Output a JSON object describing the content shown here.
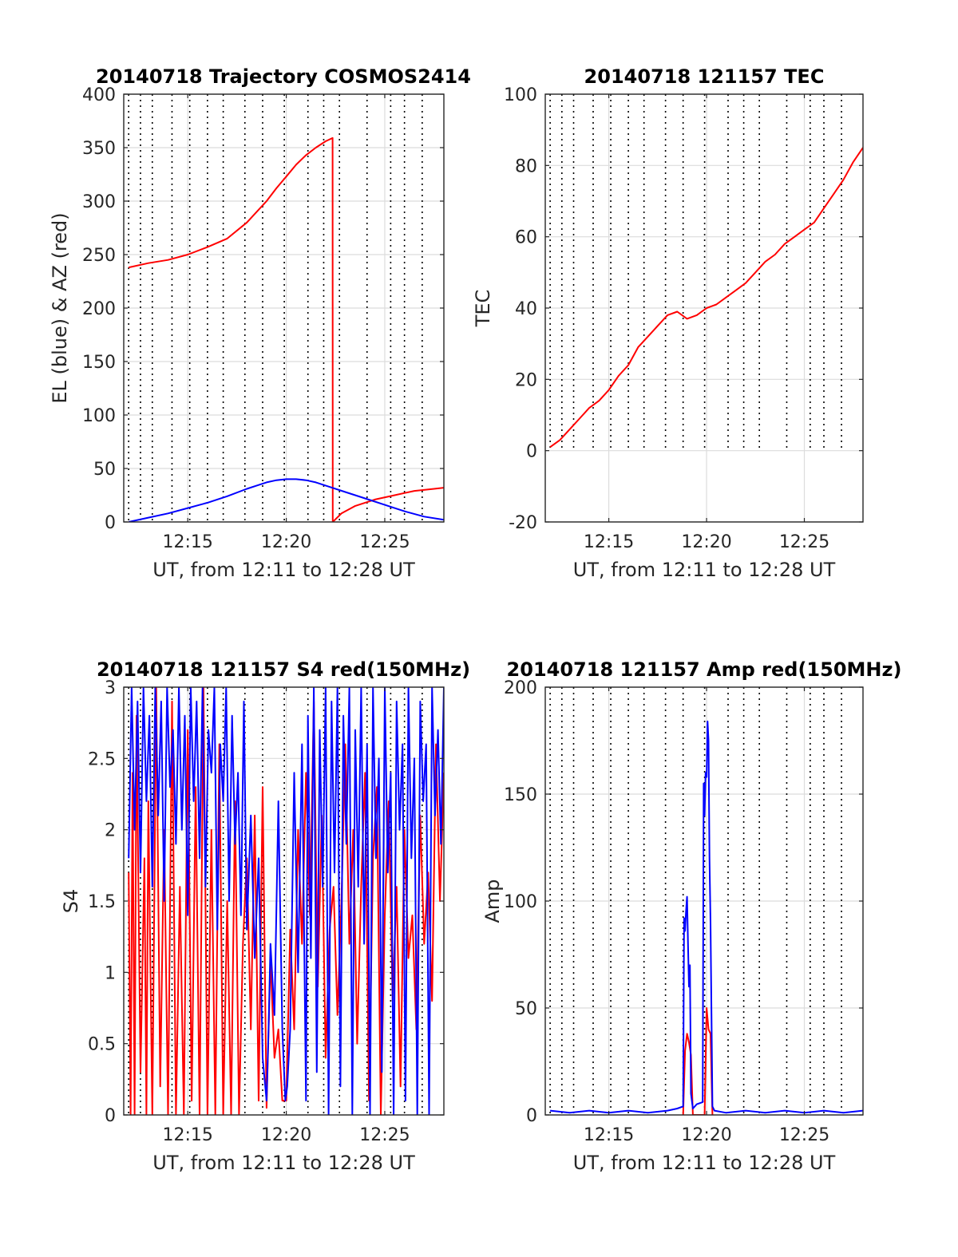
{
  "chart_data": [
    {
      "type": "line",
      "title": "20140718 Trajectory COSMOS2414",
      "xlabel": "UT, from 12:11 to 12:28 UT",
      "ylabel": "EL (blue) & AZ (red)",
      "xlim": [
        11.75,
        28
      ],
      "ylim": [
        0,
        400
      ],
      "xticks": [
        15,
        20,
        25
      ],
      "xtick_labels": [
        "12:15",
        "12:20",
        "12:25"
      ],
      "yticks": [
        0,
        50,
        100,
        150,
        200,
        250,
        300,
        350,
        400
      ],
      "ytick_labels": [
        "0",
        "50",
        "100",
        "150",
        "200",
        "250",
        "300",
        "350",
        "400"
      ],
      "grid": true,
      "vlines": [
        12.0,
        12.6,
        13.2,
        14.2,
        15.1,
        16.0,
        16.8,
        17.9,
        18.8,
        19.9,
        21.1,
        21.9,
        22.7,
        24.1,
        25.3,
        26.0,
        26.9
      ],
      "series": [
        {
          "color": "#ff0000",
          "x": [
            12.0,
            13.0,
            14.0,
            15.0,
            16.0,
            17.0,
            18.0,
            19.0,
            19.5,
            20.0,
            20.5,
            21.0,
            21.5,
            22.0,
            22.35,
            22.36,
            22.8,
            23.5,
            24.5,
            25.5,
            26.5,
            27.5,
            28.0
          ],
          "y": [
            238,
            242,
            245,
            250,
            257,
            265,
            280,
            300,
            312,
            323,
            334,
            343,
            350,
            356,
            359,
            0,
            8,
            15,
            21,
            25,
            29,
            31,
            32
          ]
        },
        {
          "color": "#0000ff",
          "x": [
            12.0,
            13.0,
            14.0,
            15.0,
            16.0,
            17.0,
            18.0,
            18.5,
            19.0,
            19.5,
            20.0,
            20.5,
            21.0,
            21.5,
            22.0,
            23.0,
            24.0,
            25.0,
            26.0,
            27.0,
            28.0
          ],
          "y": [
            0,
            4,
            8,
            13,
            18,
            24,
            31,
            34,
            37,
            39,
            40,
            40,
            39,
            37,
            34,
            28,
            22,
            16,
            10,
            5,
            2
          ]
        }
      ]
    },
    {
      "type": "line",
      "title": "20140718 121157 TEC",
      "xlabel": "UT, from 12:11 to 12:28 UT",
      "ylabel": "TEC",
      "xlim": [
        11.75,
        28
      ],
      "ylim": [
        -20,
        100
      ],
      "xticks": [
        15,
        20,
        25
      ],
      "xtick_labels": [
        "12:15",
        "12:20",
        "12:25"
      ],
      "yticks": [
        -20,
        0,
        20,
        40,
        60,
        80,
        100
      ],
      "ytick_labels": [
        "-20",
        "0",
        "20",
        "40",
        "60",
        "80",
        "100"
      ],
      "grid": true,
      "vlines": [
        12.0,
        12.6,
        13.2,
        14.2,
        15.1,
        16.0,
        16.8,
        17.9,
        18.8,
        19.9,
        21.1,
        21.9,
        22.7,
        24.1,
        25.3,
        26.0,
        26.9
      ],
      "series": [
        {
          "color": "#ff0000",
          "x": [
            12.0,
            12.5,
            13.0,
            13.5,
            14.0,
            14.5,
            15.0,
            15.5,
            16.0,
            16.5,
            17.0,
            17.5,
            18.0,
            18.5,
            19.0,
            19.5,
            20.0,
            20.5,
            21.0,
            21.5,
            22.0,
            22.5,
            23.0,
            23.5,
            24.0,
            24.5,
            25.0,
            25.5,
            26.0,
            26.5,
            27.0,
            27.5,
            28.0
          ],
          "y": [
            1,
            3,
            6,
            9,
            12,
            14,
            17,
            21,
            24,
            29,
            32,
            35,
            38,
            39,
            37,
            38,
            40,
            41,
            43,
            45,
            47,
            50,
            53,
            55,
            58,
            60,
            62,
            64,
            68,
            72,
            76,
            81,
            85
          ]
        }
      ]
    },
    {
      "type": "line",
      "title": "20140718 121157 S4 red(150MHz)",
      "xlabel": "UT, from 12:11 to 12:28 UT",
      "ylabel": "S4",
      "xlim": [
        11.75,
        28
      ],
      "ylim": [
        0,
        3
      ],
      "xticks": [
        15,
        20,
        25
      ],
      "xtick_labels": [
        "12:15",
        "12:20",
        "12:25"
      ],
      "yticks": [
        0,
        0.5,
        1,
        1.5,
        2,
        2.5,
        3
      ],
      "ytick_labels": [
        "0",
        "0.5",
        "1",
        "1.5",
        "2",
        "2.5",
        "3"
      ],
      "grid": true,
      "vlines": [
        12.0,
        12.6,
        13.2,
        14.2,
        15.1,
        16.0,
        16.8,
        17.9,
        18.8,
        19.9,
        21.1,
        21.9,
        22.7,
        24.1,
        25.3,
        26.0,
        26.9
      ],
      "series": [
        {
          "color": "#ff0000",
          "x": [
            12.0,
            12.1,
            12.2,
            12.3,
            12.4,
            12.6,
            12.8,
            12.9,
            13.0,
            13.2,
            13.4,
            13.6,
            13.8,
            14.0,
            14.2,
            14.4,
            14.6,
            14.8,
            15.0,
            15.2,
            15.4,
            15.6,
            15.8,
            16.0,
            16.2,
            16.4,
            16.6,
            16.8,
            17.0,
            17.2,
            17.4,
            17.6,
            17.8,
            18.0,
            18.2,
            18.4,
            18.6,
            18.8,
            19.0,
            19.2,
            19.4,
            19.6,
            19.8,
            20.0,
            20.2,
            20.4,
            20.6,
            20.8,
            21.0,
            21.2,
            21.4,
            21.6,
            21.8,
            22.0,
            22.2,
            22.4,
            22.6,
            22.8,
            23.0,
            23.2,
            23.4,
            23.6,
            23.8,
            24.0,
            24.2,
            24.4,
            24.6,
            24.8,
            25.0,
            25.2,
            25.4,
            25.6,
            25.8,
            26.0,
            26.2,
            26.4,
            26.6,
            26.8,
            27.0,
            27.2,
            27.4,
            27.6,
            27.8,
            28.0
          ],
          "y": [
            1.7,
            0.0,
            2.4,
            0.0,
            2.8,
            0.3,
            1.8,
            0.0,
            2.2,
            0.0,
            3.0,
            0.2,
            2.0,
            0.0,
            2.9,
            0.0,
            1.6,
            0.0,
            2.7,
            0.1,
            2.3,
            0.0,
            3.0,
            0.0,
            2.0,
            0.0,
            2.6,
            0.0,
            1.5,
            0.0,
            2.2,
            0.0,
            1.2,
            1.8,
            0.6,
            2.1,
            0.1,
            2.3,
            0.05,
            1.1,
            0.4,
            0.6,
            0.1,
            0.1,
            1.3,
            0.6,
            2.0,
            1.2,
            2.4,
            1.4,
            2.9,
            0.9,
            2.1,
            0.4,
            1.3,
            1.6,
            0.7,
            1.5,
            2.6,
            1.2,
            2.0,
            0.5,
            1.6,
            2.4,
            0.1,
            1.8,
            2.3,
            0.0,
            1.4,
            2.2,
            0.8,
            1.6,
            0.2,
            2.0,
            1.1,
            1.4,
            0.6,
            2.1,
            1.2,
            1.7,
            0.8,
            2.6,
            1.5,
            2.4
          ]
        },
        {
          "color": "#0000ff",
          "x": [
            12.0,
            12.15,
            12.3,
            12.45,
            12.6,
            12.75,
            12.9,
            13.05,
            13.2,
            13.35,
            13.5,
            13.65,
            13.8,
            13.95,
            14.1,
            14.25,
            14.4,
            14.55,
            14.7,
            14.85,
            15.0,
            15.15,
            15.3,
            15.45,
            15.6,
            15.75,
            15.9,
            16.05,
            16.2,
            16.35,
            16.5,
            16.65,
            16.8,
            16.95,
            17.1,
            17.25,
            17.4,
            17.55,
            17.7,
            17.85,
            18.0,
            18.2,
            18.4,
            18.6,
            18.8,
            19.0,
            19.1,
            19.2,
            19.4,
            19.6,
            19.8,
            19.95,
            20.05,
            20.2,
            20.4,
            20.6,
            20.8,
            21.0,
            21.1,
            21.25,
            21.4,
            21.55,
            21.7,
            21.85,
            22.0,
            22.15,
            22.3,
            22.45,
            22.6,
            22.75,
            22.9,
            23.05,
            23.2,
            23.35,
            23.5,
            23.65,
            23.8,
            23.95,
            24.1,
            24.25,
            24.4,
            24.55,
            24.7,
            24.85,
            25.0,
            25.15,
            25.3,
            25.45,
            25.6,
            25.75,
            25.9,
            26.05,
            26.2,
            26.35,
            26.5,
            26.65,
            26.8,
            26.95,
            27.1,
            27.25,
            27.4,
            27.55,
            27.7,
            27.85,
            28.0
          ],
          "y": [
            1.8,
            3.0,
            2.0,
            2.9,
            1.7,
            3.0,
            2.2,
            2.8,
            1.6,
            3.0,
            2.1,
            2.9,
            1.5,
            3.0,
            2.3,
            2.7,
            1.9,
            3.0,
            2.0,
            2.8,
            1.4,
            3.0,
            2.2,
            2.9,
            1.8,
            3.0,
            1.6,
            2.7,
            2.4,
            3.0,
            1.3,
            2.6,
            2.2,
            3.0,
            1.5,
            2.8,
            1.9,
            2.4,
            1.4,
            2.9,
            1.3,
            2.1,
            1.1,
            1.8,
            0.4,
            0.1,
            0.6,
            1.2,
            0.7,
            2.2,
            0.6,
            0.1,
            0.2,
            0.6,
            2.4,
            1.0,
            2.6,
            0.1,
            2.8,
            1.1,
            3.0,
            0.3,
            2.7,
            1.6,
            3.0,
            0.0,
            2.9,
            1.7,
            3.0,
            0.2,
            2.8,
            1.9,
            3.0,
            0.0,
            2.7,
            1.6,
            3.0,
            1.2,
            2.6,
            0.0,
            3.0,
            1.8,
            2.5,
            0.3,
            3.0,
            1.7,
            2.4,
            0.0,
            2.9,
            2.0,
            2.6,
            0.1,
            3.0,
            1.8,
            2.5,
            0.0,
            2.9,
            2.2,
            2.6,
            0.0,
            3.0,
            2.1,
            2.7,
            1.9,
            3.0
          ]
        }
      ]
    },
    {
      "type": "line",
      "title": "20140718 121157 Amp red(150MHz)",
      "xlabel": "UT, from 12:11 to 12:28 UT",
      "ylabel": "Amp",
      "xlim": [
        11.75,
        28
      ],
      "ylim": [
        0,
        200
      ],
      "xticks": [
        15,
        20,
        25
      ],
      "xtick_labels": [
        "12:15",
        "12:20",
        "12:25"
      ],
      "yticks": [
        0,
        50,
        100,
        150,
        200
      ],
      "ytick_labels": [
        "0",
        "50",
        "100",
        "150",
        "200"
      ],
      "grid": true,
      "vlines": [
        12.0,
        12.6,
        13.2,
        14.2,
        15.1,
        16.0,
        16.8,
        17.9,
        18.8,
        19.9,
        21.1,
        21.9,
        22.7,
        24.1,
        25.3,
        26.0,
        26.9
      ],
      "series": [
        {
          "color": "#ff0000",
          "x": [
            18.8,
            18.9,
            19.0,
            19.1,
            19.2,
            19.3,
            19.9,
            20.0,
            20.1,
            20.2,
            20.3
          ],
          "y": [
            0,
            30,
            38,
            34,
            28,
            0,
            0,
            50,
            40,
            38,
            0
          ]
        },
        {
          "color": "#0000ff",
          "x": [
            12.0,
            13.0,
            14.0,
            15.0,
            16.0,
            17.0,
            18.0,
            18.5,
            18.8,
            18.85,
            18.9,
            18.95,
            19.0,
            19.05,
            19.1,
            19.15,
            19.2,
            19.3,
            19.5,
            19.8,
            19.85,
            19.9,
            19.95,
            20.0,
            20.05,
            20.1,
            20.15,
            20.2,
            20.3,
            20.4,
            21.0,
            22.0,
            23.0,
            24.0,
            25.0,
            26.0,
            27.0,
            28.0
          ],
          "y": [
            2,
            1,
            2,
            1,
            2,
            1,
            2,
            3,
            4,
            92,
            86,
            95,
            102,
            80,
            60,
            70,
            10,
            3,
            5,
            6,
            155,
            140,
            160,
            158,
            184,
            175,
            120,
            90,
            4,
            2,
            1,
            2,
            1,
            2,
            1,
            2,
            1,
            2
          ]
        }
      ]
    }
  ]
}
